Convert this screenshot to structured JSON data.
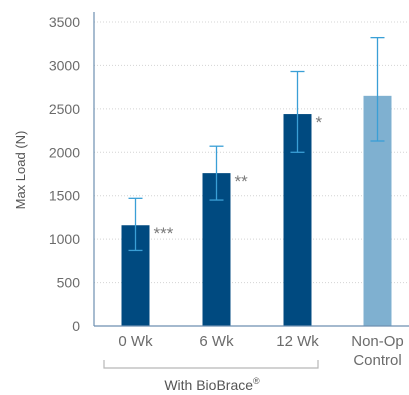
{
  "chart_data": {
    "type": "bar",
    "ylabel": "Max Load (N)",
    "ylim": [
      0,
      3500
    ],
    "yticks": [
      0,
      500,
      1000,
      1500,
      2000,
      2500,
      3000,
      3500
    ],
    "grid": true,
    "categories": [
      {
        "line1": "0 Wk",
        "line2": ""
      },
      {
        "line1": "6 Wk",
        "line2": ""
      },
      {
        "line1": "12 Wk",
        "line2": ""
      },
      {
        "line1": "Non-Op",
        "line2": "Control"
      }
    ],
    "values": [
      1160,
      1760,
      2440,
      2650
    ],
    "error_low": [
      870,
      1450,
      2000,
      2130
    ],
    "error_high": [
      1470,
      2070,
      2930,
      3320
    ],
    "significance": [
      "***",
      "**",
      "*",
      ""
    ],
    "colors": [
      "#004a80",
      "#004a80",
      "#004a80",
      "#7fb0d0"
    ],
    "error_color": "#3a9fd6",
    "group_label": "With BioBrace",
    "group_label_sup": "®"
  }
}
